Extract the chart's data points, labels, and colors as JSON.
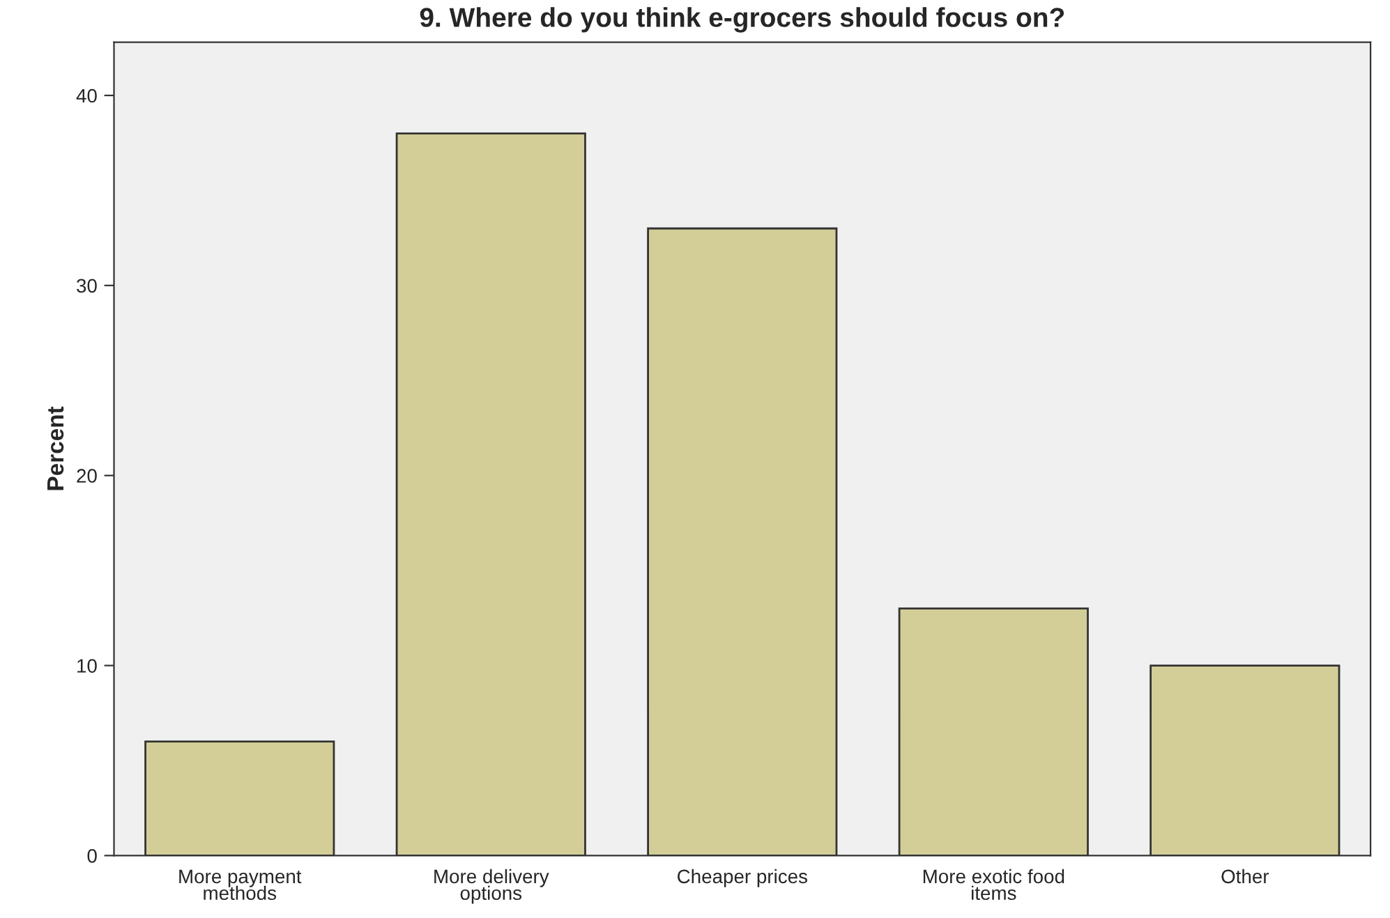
{
  "chart_data": {
    "type": "bar",
    "title": "9. Where do you think e-grocers should focus on?",
    "ylabel": "Percent",
    "categories": [
      "More payment\nmethods",
      "More delivery\noptions",
      "Cheaper prices",
      "More exotic food\nitems",
      "Other"
    ],
    "values": [
      6,
      38,
      33,
      13,
      10
    ],
    "color": "#d3ce97",
    "ylim": [
      0,
      42.8
    ],
    "yticks": [
      0,
      10,
      20,
      30,
      40
    ],
    "grid": false
  }
}
